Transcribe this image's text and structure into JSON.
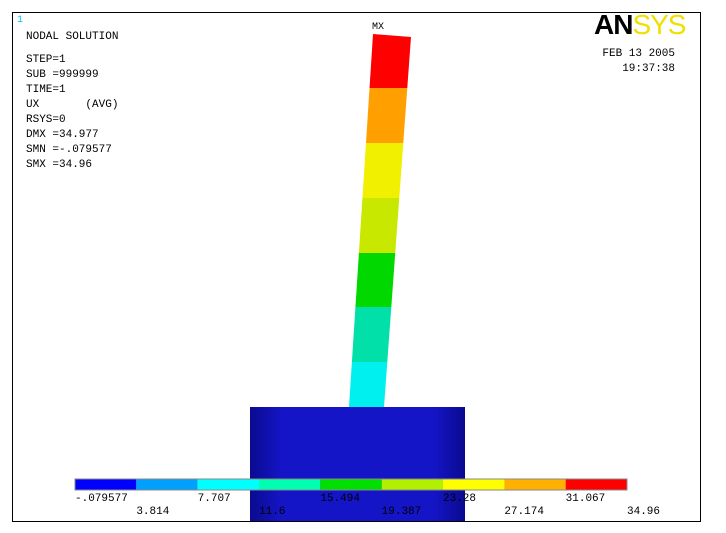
{
  "window_number": "1",
  "info": [
    "NODAL SOLUTION",
    "STEP=1",
    "SUB =999999",
    "TIME=1",
    "UX       (AVG)",
    "RSYS=0",
    "DMX =34.977",
    "SMN =-.079577",
    "SMX =34.96"
  ],
  "max_marker": "MX",
  "logo": {
    "dark": "AN",
    "light": "SYS"
  },
  "date": "FEB 13 2005",
  "time": "19:37:38",
  "legend": {
    "colors": [
      "#0000ff",
      "#00a0ff",
      "#00ffff",
      "#00ffb0",
      "#00e000",
      "#b0f000",
      "#ffff00",
      "#ffb000",
      "#ff0000"
    ],
    "labels": [
      "-.079577",
      "3.814",
      "7.707",
      "11.6",
      "15.494",
      "19.387",
      "23.28",
      "27.174",
      "31.067",
      "34.96"
    ]
  }
}
